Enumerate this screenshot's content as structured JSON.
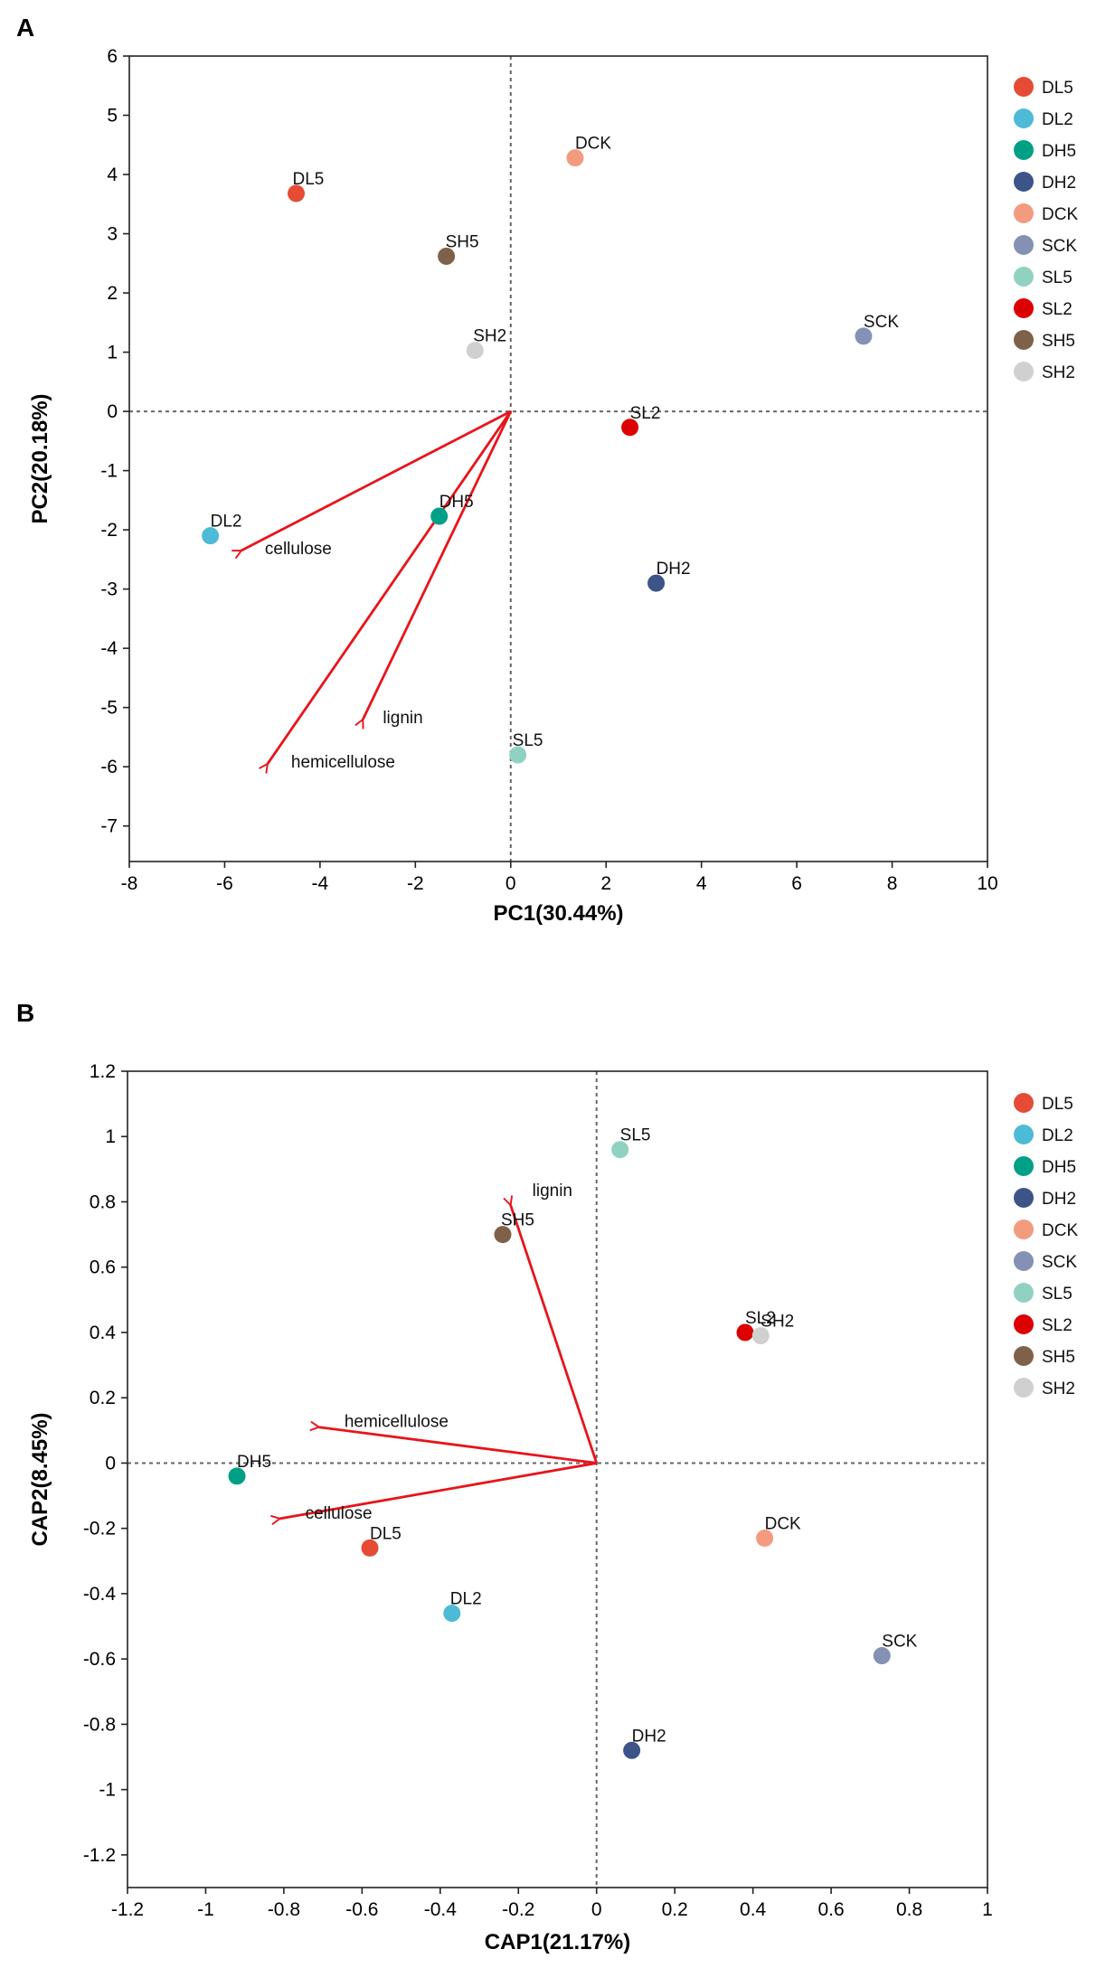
{
  "chart_data": [
    {
      "type": "scatter",
      "panel_label": "A",
      "xlabel": "PC1(30.44%)",
      "ylabel": "PC2(20.18%)",
      "xlim": [
        -8,
        10
      ],
      "ylim": [
        -7.6,
        6
      ],
      "xticks": [
        "-8",
        "-6",
        "-4",
        "-2",
        "0",
        "2",
        "4",
        "6",
        "8",
        "10"
      ],
      "yticks": [
        "6",
        "5",
        "4",
        "3",
        "2",
        "1",
        "0",
        "-1",
        "-2",
        "-3",
        "-4",
        "-5",
        "-6",
        "-7"
      ],
      "points": [
        {
          "label": "DL5",
          "x": -4.5,
          "y": 3.68
        },
        {
          "label": "DL2",
          "x": -6.3,
          "y": -2.1
        },
        {
          "label": "DH5",
          "x": -1.5,
          "y": -1.77
        },
        {
          "label": "DH2",
          "x": 3.05,
          "y": -2.9
        },
        {
          "label": "DCK",
          "x": 1.35,
          "y": 4.28
        },
        {
          "label": "SCK",
          "x": 7.4,
          "y": 1.27
        },
        {
          "label": "SL5",
          "x": 0.15,
          "y": -5.8
        },
        {
          "label": "SL2",
          "x": 2.5,
          "y": -0.27
        },
        {
          "label": "SH5",
          "x": -1.35,
          "y": 2.62
        },
        {
          "label": "SH2",
          "x": -0.75,
          "y": 1.03
        }
      ],
      "vectors": [
        {
          "label": "cellulose",
          "x": -5.65,
          "y": -2.35
        },
        {
          "label": "lignin",
          "x": -3.1,
          "y": -5.2
        },
        {
          "label": "hemicellulose",
          "x": -5.1,
          "y": -5.95
        }
      ],
      "legend": [
        "DL5",
        "DL2",
        "DH5",
        "DH2",
        "DCK",
        "SCK",
        "SL5",
        "SL2",
        "SH5",
        "SH2"
      ]
    },
    {
      "type": "scatter",
      "panel_label": "B",
      "xlabel": "CAP1(21.17%)",
      "ylabel": "CAP2(8.45%)",
      "xlim": [
        -1.2,
        1
      ],
      "ylim": [
        -1.3,
        1.2
      ],
      "xticks": [
        "-1.2",
        "-1",
        "-0.8",
        "-0.6",
        "-0.4",
        "-0.2",
        "0",
        "0.2",
        "0.4",
        "0.6",
        "0.8",
        "1"
      ],
      "yticks": [
        "1.2",
        "1",
        "0.8",
        "0.6",
        "0.4",
        "0.2",
        "0",
        "-0.2",
        "-0.4",
        "-0.6",
        "-0.8",
        "-1",
        "-1.2"
      ],
      "points": [
        {
          "label": "DL5",
          "x": -0.58,
          "y": -0.26
        },
        {
          "label": "DL2",
          "x": -0.37,
          "y": -0.46
        },
        {
          "label": "DH5",
          "x": -0.92,
          "y": -0.04
        },
        {
          "label": "DH2",
          "x": 0.09,
          "y": -0.88
        },
        {
          "label": "DCK",
          "x": 0.43,
          "y": -0.23
        },
        {
          "label": "SCK",
          "x": 0.73,
          "y": -0.59
        },
        {
          "label": "SL5",
          "x": 0.06,
          "y": 0.96
        },
        {
          "label": "SL2",
          "x": 0.38,
          "y": 0.4
        },
        {
          "label": "SH5",
          "x": -0.24,
          "y": 0.7
        },
        {
          "label": "SH2",
          "x": 0.42,
          "y": 0.39
        }
      ],
      "vectors": [
        {
          "label": "lignin",
          "x": -0.22,
          "y": 0.79
        },
        {
          "label": "hemicellulose",
          "x": -0.71,
          "y": 0.11
        },
        {
          "label": "cellulose",
          "x": -0.81,
          "y": -0.17
        }
      ],
      "legend": [
        "DL5",
        "DL2",
        "DH5",
        "DH2",
        "DCK",
        "SCK",
        "SL5",
        "SL2",
        "SH5",
        "SH2"
      ]
    }
  ],
  "colors": {
    "DL5": "#e64b35",
    "DL2": "#4dbbd5",
    "DH5": "#00a087",
    "DH2": "#3c5488",
    "DCK": "#f39b7f",
    "SCK": "#8491b4",
    "SL5": "#91d1c2",
    "SL2": "#dc0000",
    "SH5": "#7e6148",
    "SH2": "#d0d0d0",
    "arrow": "#e8141b"
  }
}
